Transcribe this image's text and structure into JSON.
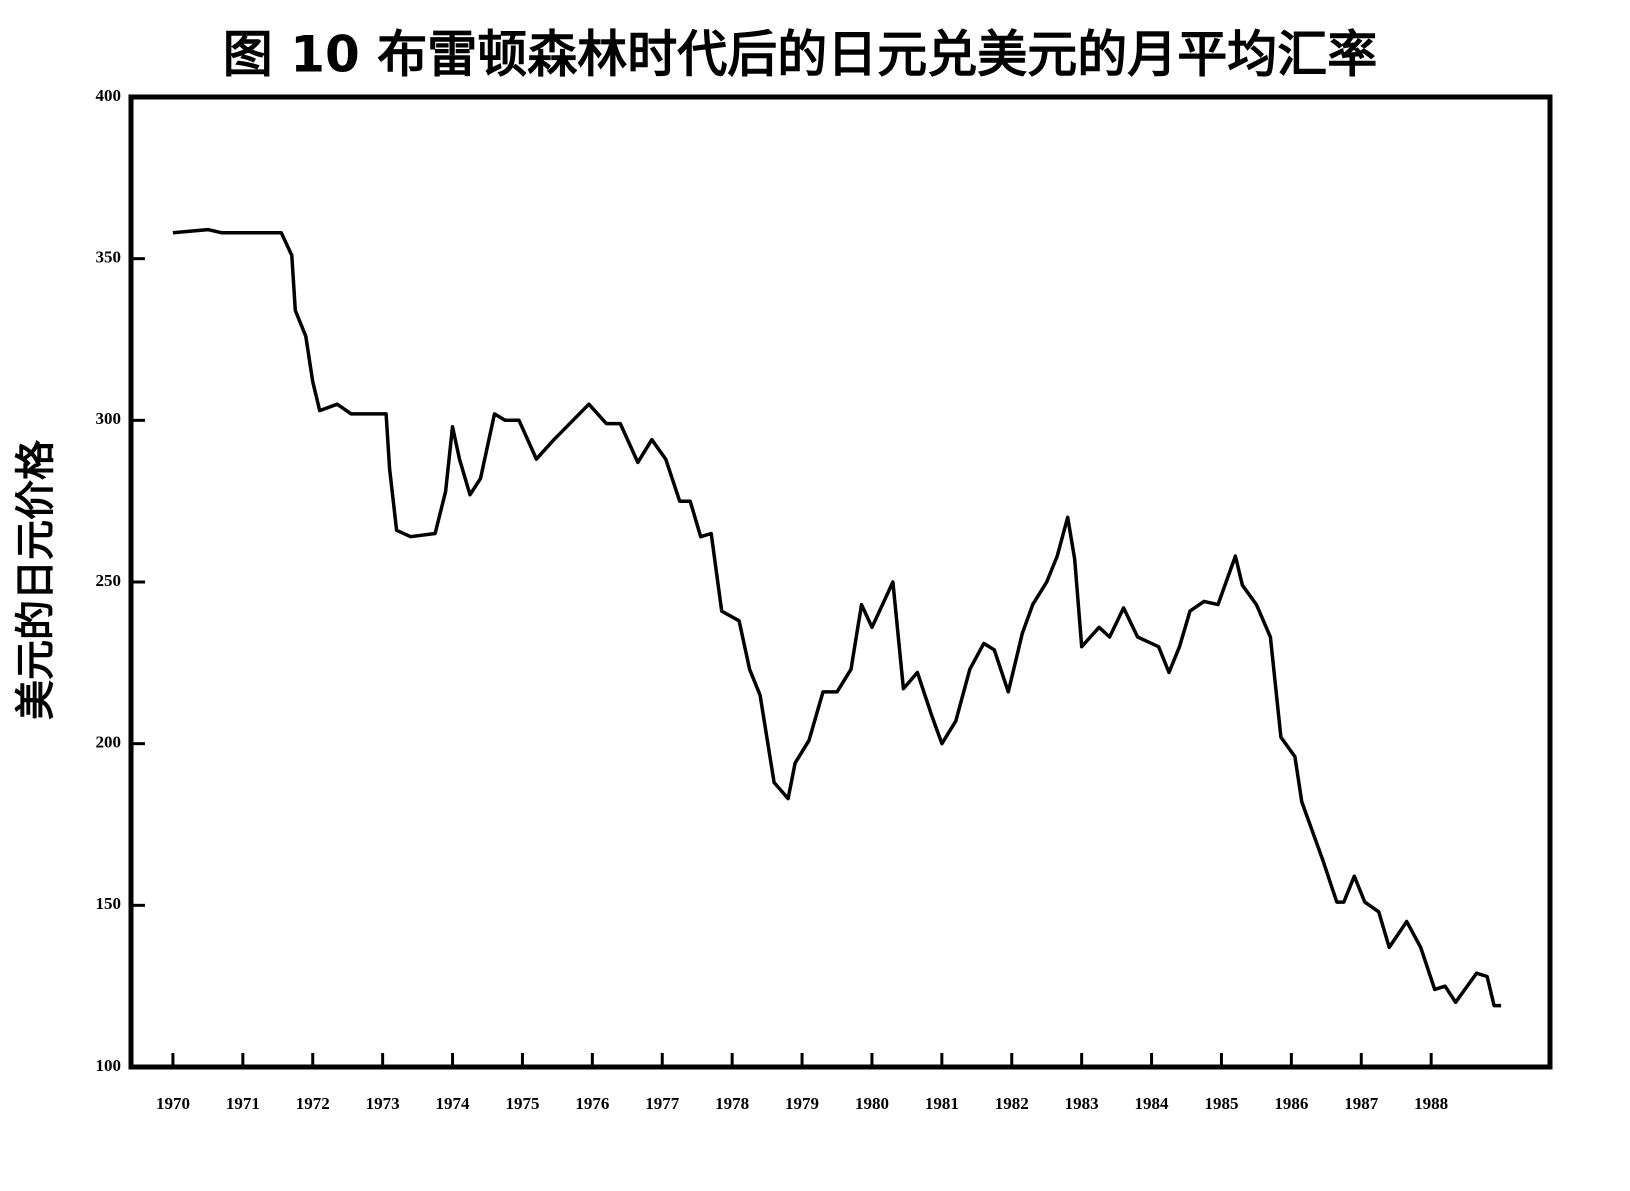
{
  "chart_data": {
    "type": "line",
    "title": "图 10 布雷顿森林时代后的日元兑美元的月平均汇率",
    "y_label": "美元的日元价格",
    "xlim": [
      1969.4,
      1989.7
    ],
    "xticks": [
      1970,
      1971,
      1972,
      1973,
      1974,
      1975,
      1976,
      1977,
      1978,
      1979,
      1980,
      1981,
      1982,
      1983,
      1984,
      1985,
      1986,
      1987,
      1988
    ],
    "ylim": [
      100,
      400
    ],
    "yticks": [
      100,
      150,
      200,
      250,
      300,
      350,
      400
    ],
    "series": [
      {
        "color": "#000000",
        "x": [
          1970.0,
          1970.5,
          1970.7,
          1971.55,
          1971.7,
          1971.75,
          1971.9,
          1972.0,
          1972.1,
          1972.35,
          1972.55,
          1973.05,
          1973.1,
          1973.2,
          1973.4,
          1973.75,
          1973.9,
          1974.0,
          1974.1,
          1974.25,
          1974.4,
          1974.6,
          1974.75,
          1974.95,
          1975.2,
          1975.45,
          1975.95,
          1976.2,
          1976.4,
          1976.65,
          1976.85,
          1977.05,
          1977.25,
          1977.4,
          1977.55,
          1977.7,
          1977.85,
          1978.1,
          1978.25,
          1978.4,
          1978.6,
          1978.8,
          1978.9,
          1979.1,
          1979.3,
          1979.5,
          1979.7,
          1979.85,
          1980.0,
          1980.3,
          1980.45,
          1980.65,
          1980.85,
          1981.0,
          1981.2,
          1981.4,
          1981.6,
          1981.75,
          1981.95,
          1982.15,
          1982.3,
          1982.5,
          1982.65,
          1982.8,
          1982.9,
          1983.0,
          1983.25,
          1983.4,
          1983.6,
          1983.8,
          1984.1,
          1984.25,
          1984.4,
          1984.55,
          1984.75,
          1984.95,
          1985.2,
          1985.3,
          1985.5,
          1985.7,
          1985.85,
          1986.05,
          1986.15,
          1986.35,
          1986.45,
          1986.65,
          1986.75,
          1986.9,
          1987.05,
          1987.25,
          1987.4,
          1987.65,
          1987.85,
          1988.05,
          1988.2,
          1988.35,
          1988.45,
          1988.65,
          1988.8,
          1988.9,
          1989.0
        ],
        "values": [
          358,
          359,
          358,
          358,
          351,
          334,
          326,
          312,
          303,
          305,
          302,
          302,
          285,
          266,
          264,
          265,
          278,
          298,
          288,
          277,
          282,
          302,
          300,
          300,
          288,
          294,
          305,
          299,
          299,
          287,
          294,
          288,
          275,
          275,
          264,
          265,
          241,
          238,
          223,
          215,
          188,
          183,
          194,
          201,
          216,
          216,
          223,
          243,
          236,
          250,
          217,
          222,
          209,
          200,
          207,
          223,
          231,
          229,
          216,
          234,
          243,
          250,
          258,
          270,
          257,
          230,
          236,
          233,
          242,
          233,
          230,
          222,
          230,
          241,
          244,
          243,
          258,
          249,
          243,
          233,
          202,
          196,
          182,
          170,
          164,
          151,
          151,
          159,
          151,
          148,
          137,
          145,
          137,
          124,
          125,
          120,
          123,
          129,
          128,
          119,
          119
        ]
      }
    ]
  }
}
